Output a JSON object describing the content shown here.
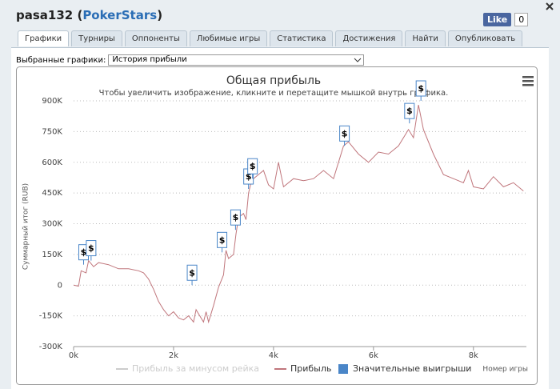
{
  "header": {
    "title": [
      "pasa132 (",
      "PokerStars",
      ")"
    ],
    "like": "Like",
    "like_count": "0"
  },
  "tabs": [
    "Графики",
    "Турниры",
    "Оппоненты",
    "Любимые игры",
    "Статистика",
    "Достижения",
    "Найти",
    "Опубликовать"
  ],
  "selector": {
    "label": "Выбранные графики:",
    "value": "История прибыли"
  },
  "chart_data": {
    "type": "line",
    "title": "Общая прибыль",
    "subtitle": "Чтобы увеличить изображение, кликните и перетащите мышкой внутрь графика.",
    "y_label": "Суммарный итог (RUB)",
    "x_label": "Номер игры",
    "grid": true,
    "xlim": [
      0,
      9060
    ],
    "xticks": [
      {
        "value": 0,
        "label": "0k"
      },
      {
        "value": 2000,
        "label": "2k"
      },
      {
        "value": 4000,
        "label": "4k"
      },
      {
        "value": 6000,
        "label": "6k"
      },
      {
        "value": 8000,
        "label": "8k"
      }
    ],
    "ylim": [
      -300000,
      900000
    ],
    "yticks": [
      {
        "value": -300000,
        "label": "-300K"
      },
      {
        "value": -150000,
        "label": "-150K"
      },
      {
        "value": 0,
        "label": "0"
      },
      {
        "value": 150000,
        "label": "150K"
      },
      {
        "value": 300000,
        "label": "300K"
      },
      {
        "value": 450000,
        "label": "450K"
      },
      {
        "value": 600000,
        "label": "600K"
      },
      {
        "value": 750000,
        "label": "750K"
      },
      {
        "value": 900000,
        "label": "900K"
      }
    ],
    "series": [
      {
        "name": "Прибыль за минусом рейка",
        "color": "#cccccc",
        "visible": false
      },
      {
        "name": "Прибыль",
        "color": "#c0767c",
        "x": [
          0,
          100,
          150,
          250,
          300,
          400,
          500,
          700,
          900,
          1100,
          1300,
          1400,
          1500,
          1600,
          1700,
          1800,
          1900,
          2000,
          2100,
          2200,
          2300,
          2400,
          2450,
          2500,
          2600,
          2650,
          2700,
          2800,
          2900,
          3000,
          3050,
          3100,
          3200,
          3250,
          3300,
          3400,
          3450,
          3500,
          3550,
          3600,
          3700,
          3800,
          3900,
          4000,
          4100,
          4200,
          4400,
          4600,
          4800,
          5000,
          5200,
          5400,
          5500,
          5700,
          5900,
          6100,
          6300,
          6500,
          6700,
          6800,
          6900,
          7000,
          7200,
          7400,
          7600,
          7800,
          7900,
          8000,
          8200,
          8400,
          8600,
          8800,
          9000
        ],
        "values": [
          0,
          -5000,
          70000,
          60000,
          120000,
          90000,
          110000,
          100000,
          80000,
          80000,
          70000,
          60000,
          30000,
          -20000,
          -80000,
          -120000,
          -150000,
          -130000,
          -160000,
          -170000,
          -150000,
          -180000,
          -120000,
          -140000,
          -180000,
          -130000,
          -180000,
          -100000,
          -10000,
          50000,
          170000,
          130000,
          150000,
          250000,
          330000,
          350000,
          320000,
          450000,
          500000,
          520000,
          540000,
          560000,
          490000,
          470000,
          600000,
          480000,
          520000,
          510000,
          520000,
          560000,
          520000,
          680000,
          700000,
          640000,
          600000,
          650000,
          640000,
          680000,
          760000,
          720000,
          880000,
          760000,
          640000,
          540000,
          520000,
          500000,
          560000,
          480000,
          470000,
          530000,
          480000,
          500000,
          460000
        ]
      },
      {
        "name": "Значительные выигрыши",
        "color": "#4a86c8",
        "marker": "$",
        "x": [
          200,
          350,
          2370,
          2970,
          3240,
          3500,
          3580,
          5420,
          6720,
          6950
        ],
        "values": [
          100000,
          120000,
          0,
          160000,
          270000,
          470000,
          520000,
          680000,
          790000,
          900000
        ]
      }
    ]
  }
}
